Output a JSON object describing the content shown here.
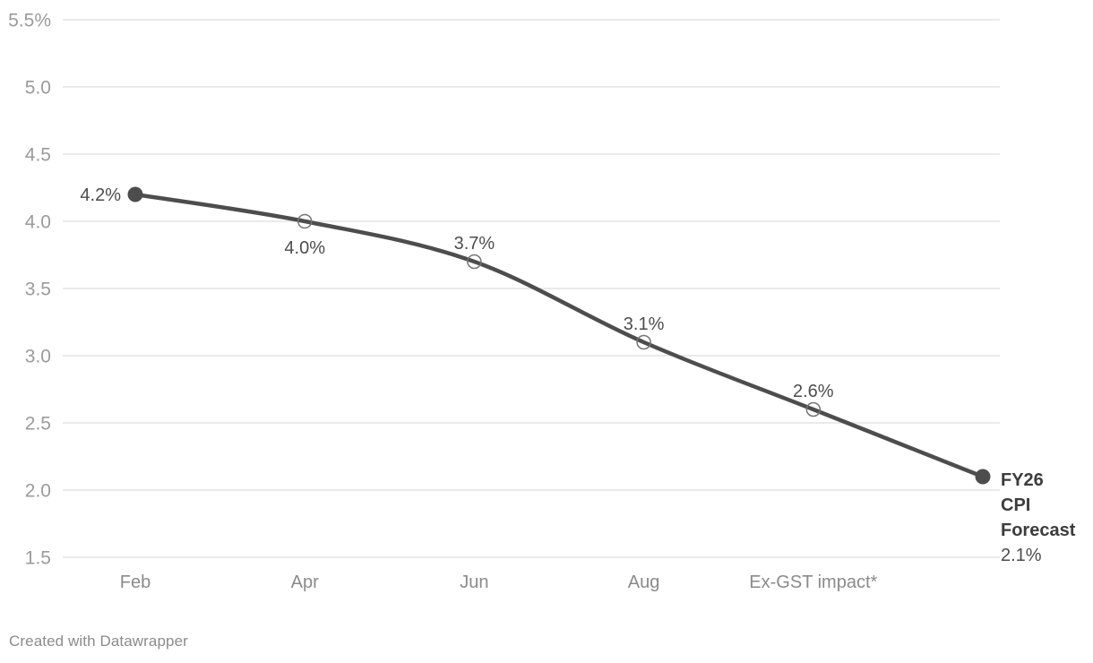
{
  "chart_data": {
    "type": "line",
    "categories": [
      "Feb",
      "Apr",
      "Jun",
      "Aug",
      "Ex-GST impact*",
      ""
    ],
    "values": [
      4.2,
      4.0,
      3.7,
      3.1,
      2.6,
      2.1
    ],
    "point_labels": [
      "4.2%",
      "4.0%",
      "3.7%",
      "3.1%",
      "2.6%",
      ""
    ],
    "point_label_positions": [
      "left",
      "below",
      "above",
      "above",
      "above",
      "none"
    ],
    "markers": [
      "filled",
      "open",
      "open",
      "open",
      "open",
      "filled"
    ],
    "annotation": {
      "lines": [
        "FY26",
        "CPI",
        "Forecast"
      ],
      "value": "2.1%"
    },
    "y_ticks": [
      {
        "label": "5.5%",
        "value": 5.5
      },
      {
        "label": "5.0",
        "value": 5.0
      },
      {
        "label": "4.5",
        "value": 4.5
      },
      {
        "label": "4.0",
        "value": 4.0
      },
      {
        "label": "3.5",
        "value": 3.5
      },
      {
        "label": "3.0",
        "value": 3.0
      },
      {
        "label": "2.5",
        "value": 2.5
      },
      {
        "label": "2.0",
        "value": 2.0
      },
      {
        "label": "1.5",
        "value": 1.5
      }
    ],
    "ylim": [
      1.5,
      5.5
    ],
    "grid": "horizontal",
    "legend": "none",
    "title": "",
    "xlabel": "",
    "ylabel": "",
    "colors": {
      "line": "#4d4d4d",
      "marker_filled": "#4d4d4d",
      "marker_open_stroke": "#757575",
      "grid": "#e4e4e4",
      "axis_tick": "#9b9b9b",
      "axis_category": "#8a8a8a",
      "data_label": "#4d4d4d",
      "annotation": "#3c3c3c",
      "background": "#ffffff"
    }
  },
  "footer": {
    "credit": "Created with Datawrapper"
  }
}
